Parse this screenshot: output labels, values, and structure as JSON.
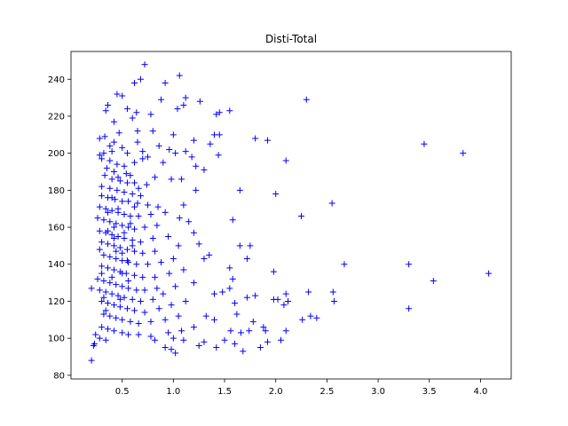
{
  "chart_data": {
    "type": "scatter",
    "title": "Disti-Total",
    "xlabel": "",
    "ylabel": "",
    "xlim": [
      0.0,
      4.3
    ],
    "ylim": [
      78,
      255
    ],
    "xticks": [
      0.5,
      1.0,
      1.5,
      2.0,
      2.5,
      3.0,
      3.5,
      4.0
    ],
    "yticks": [
      80,
      100,
      120,
      140,
      160,
      180,
      200,
      220,
      240
    ],
    "grid": false,
    "marker": "+",
    "color": "#0000ff",
    "series": [
      {
        "points": [
          [
            0.72,
            248
          ],
          [
            1.06,
            242
          ],
          [
            0.68,
            240
          ],
          [
            0.92,
            238
          ],
          [
            0.62,
            238
          ],
          [
            0.45,
            232
          ],
          [
            0.5,
            231
          ],
          [
            0.36,
            226
          ],
          [
            0.34,
            223
          ],
          [
            0.55,
            224
          ],
          [
            0.88,
            229
          ],
          [
            1.12,
            230
          ],
          [
            1.26,
            228
          ],
          [
            1.1,
            226
          ],
          [
            1.04,
            224
          ],
          [
            0.64,
            222
          ],
          [
            0.78,
            221
          ],
          [
            1.45,
            222
          ],
          [
            1.55,
            223
          ],
          [
            2.3,
            229
          ],
          [
            1.42,
            221
          ],
          [
            0.6,
            219
          ],
          [
            0.42,
            217
          ],
          [
            0.8,
            212
          ],
          [
            0.65,
            212
          ],
          [
            0.47,
            211
          ],
          [
            0.33,
            209
          ],
          [
            0.28,
            208
          ],
          [
            1.0,
            210
          ],
          [
            1.4,
            210
          ],
          [
            1.45,
            210
          ],
          [
            1.2,
            207
          ],
          [
            1.36,
            205
          ],
          [
            1.8,
            208
          ],
          [
            1.92,
            207
          ],
          [
            3.45,
            205
          ],
          [
            0.42,
            206
          ],
          [
            0.38,
            204
          ],
          [
            0.5,
            203
          ],
          [
            0.65,
            206
          ],
          [
            0.86,
            204
          ],
          [
            0.96,
            202
          ],
          [
            0.4,
            201
          ],
          [
            0.32,
            200
          ],
          [
            0.28,
            199
          ],
          [
            0.55,
            200
          ],
          [
            0.7,
            201
          ],
          [
            0.75,
            198
          ],
          [
            1.12,
            201
          ],
          [
            1.02,
            200
          ],
          [
            1.44,
            199
          ],
          [
            3.83,
            200
          ],
          [
            2.1,
            196
          ],
          [
            1.18,
            198
          ],
          [
            0.3,
            197
          ],
          [
            0.38,
            196
          ],
          [
            0.45,
            194
          ],
          [
            0.52,
            193
          ],
          [
            0.62,
            195
          ],
          [
            0.9,
            195
          ],
          [
            1.22,
            193
          ],
          [
            0.35,
            192
          ],
          [
            0.42,
            190
          ],
          [
            0.58,
            188
          ],
          [
            0.82,
            187
          ],
          [
            0.98,
            186
          ],
          [
            1.08,
            186
          ],
          [
            1.3,
            191
          ],
          [
            0.33,
            188
          ],
          [
            0.4,
            186
          ],
          [
            0.48,
            185
          ],
          [
            0.55,
            184
          ],
          [
            0.62,
            184
          ],
          [
            0.74,
            183
          ],
          [
            0.3,
            182
          ],
          [
            0.38,
            181
          ],
          [
            0.45,
            180
          ],
          [
            0.52,
            179
          ],
          [
            0.6,
            178
          ],
          [
            0.68,
            177
          ],
          [
            1.22,
            180
          ],
          [
            1.65,
            180
          ],
          [
            2.0,
            178
          ],
          [
            0.3,
            177
          ],
          [
            0.36,
            176
          ],
          [
            0.43,
            175
          ],
          [
            0.5,
            174
          ],
          [
            0.56,
            174
          ],
          [
            0.65,
            173
          ],
          [
            0.75,
            172
          ],
          [
            0.85,
            171
          ],
          [
            1.1,
            172
          ],
          [
            2.55,
            173
          ],
          [
            0.28,
            171
          ],
          [
            0.34,
            170
          ],
          [
            0.4,
            169
          ],
          [
            0.46,
            168
          ],
          [
            0.52,
            167
          ],
          [
            0.58,
            166
          ],
          [
            0.66,
            166
          ],
          [
            0.78,
            167
          ],
          [
            0.92,
            168
          ],
          [
            1.06,
            165
          ],
          [
            0.26,
            165
          ],
          [
            0.32,
            164
          ],
          [
            0.38,
            163
          ],
          [
            0.44,
            162
          ],
          [
            0.5,
            161
          ],
          [
            0.56,
            160
          ],
          [
            0.62,
            159
          ],
          [
            0.72,
            160
          ],
          [
            0.84,
            161
          ],
          [
            1.15,
            163
          ],
          [
            1.58,
            164
          ],
          [
            2.25,
            166
          ],
          [
            0.28,
            158
          ],
          [
            0.34,
            157
          ],
          [
            0.4,
            156
          ],
          [
            0.46,
            155
          ],
          [
            0.52,
            154
          ],
          [
            0.6,
            153
          ],
          [
            0.68,
            152
          ],
          [
            0.8,
            154
          ],
          [
            0.95,
            155
          ],
          [
            1.2,
            157
          ],
          [
            0.3,
            152
          ],
          [
            0.36,
            151
          ],
          [
            0.42,
            150
          ],
          [
            0.48,
            149
          ],
          [
            0.55,
            148
          ],
          [
            0.62,
            147
          ],
          [
            0.7,
            146
          ],
          [
            0.82,
            147
          ],
          [
            1.05,
            150
          ],
          [
            1.25,
            151
          ],
          [
            1.65,
            150
          ],
          [
            1.75,
            150
          ],
          [
            0.32,
            145
          ],
          [
            0.38,
            144
          ],
          [
            0.44,
            143
          ],
          [
            0.5,
            142
          ],
          [
            0.56,
            141
          ],
          [
            0.64,
            140
          ],
          [
            0.75,
            140
          ],
          [
            0.88,
            141
          ],
          [
            1.0,
            143
          ],
          [
            1.3,
            143
          ],
          [
            1.35,
            145
          ],
          [
            1.72,
            143
          ],
          [
            2.67,
            140
          ],
          [
            3.3,
            140
          ],
          [
            0.3,
            139
          ],
          [
            0.36,
            138
          ],
          [
            0.42,
            137
          ],
          [
            0.48,
            136
          ],
          [
            0.54,
            135
          ],
          [
            0.62,
            134
          ],
          [
            0.7,
            133
          ],
          [
            0.82,
            133
          ],
          [
            0.96,
            135
          ],
          [
            1.1,
            137
          ],
          [
            1.55,
            138
          ],
          [
            1.98,
            136
          ],
          [
            0.26,
            132
          ],
          [
            0.32,
            131
          ],
          [
            0.38,
            130
          ],
          [
            0.44,
            129
          ],
          [
            0.5,
            128
          ],
          [
            0.56,
            127
          ],
          [
            0.64,
            126
          ],
          [
            0.72,
            126
          ],
          [
            0.84,
            127
          ],
          [
            1.02,
            128
          ],
          [
            1.2,
            130
          ],
          [
            1.58,
            132
          ],
          [
            3.54,
            131
          ],
          [
            4.08,
            135
          ],
          [
            0.2,
            127
          ],
          [
            0.28,
            126
          ],
          [
            0.34,
            125
          ],
          [
            0.4,
            124
          ],
          [
            0.46,
            123
          ],
          [
            0.52,
            122
          ],
          [
            0.6,
            121
          ],
          [
            0.68,
            120
          ],
          [
            0.8,
            121
          ],
          [
            0.9,
            124
          ],
          [
            1.4,
            124
          ],
          [
            1.48,
            125
          ],
          [
            1.55,
            127
          ],
          [
            2.1,
            124
          ],
          [
            2.32,
            125
          ],
          [
            2.56,
            125
          ],
          [
            0.3,
            120
          ],
          [
            0.36,
            119
          ],
          [
            0.42,
            118
          ],
          [
            0.48,
            117
          ],
          [
            0.55,
            116
          ],
          [
            0.62,
            115
          ],
          [
            0.72,
            114
          ],
          [
            0.86,
            116
          ],
          [
            0.98,
            118
          ],
          [
            1.12,
            120
          ],
          [
            1.6,
            119
          ],
          [
            1.72,
            122
          ],
          [
            1.8,
            123
          ],
          [
            1.98,
            121
          ],
          [
            2.02,
            121
          ],
          [
            2.08,
            118
          ],
          [
            2.57,
            120
          ],
          [
            0.32,
            113
          ],
          [
            0.38,
            112
          ],
          [
            0.44,
            111
          ],
          [
            0.5,
            110
          ],
          [
            0.58,
            109
          ],
          [
            0.66,
            108
          ],
          [
            0.78,
            109
          ],
          [
            0.92,
            110
          ],
          [
            1.05,
            112
          ],
          [
            1.32,
            112
          ],
          [
            1.4,
            110
          ],
          [
            1.62,
            113
          ],
          [
            1.78,
            109
          ],
          [
            2.12,
            120
          ],
          [
            2.34,
            112
          ],
          [
            2.4,
            111
          ],
          [
            2.26,
            110
          ],
          [
            3.3,
            116
          ],
          [
            0.3,
            106
          ],
          [
            0.36,
            105
          ],
          [
            0.42,
            104
          ],
          [
            0.5,
            103
          ],
          [
            0.56,
            102
          ],
          [
            0.66,
            102
          ],
          [
            0.78,
            101
          ],
          [
            0.95,
            103
          ],
          [
            1.08,
            104
          ],
          [
            1.2,
            106
          ],
          [
            1.56,
            104
          ],
          [
            1.66,
            103
          ],
          [
            1.74,
            104
          ],
          [
            1.88,
            106
          ],
          [
            1.9,
            104
          ],
          [
            2.1,
            104
          ],
          [
            0.24,
            102
          ],
          [
            0.28,
            100
          ],
          [
            0.34,
            99
          ],
          [
            0.82,
            99
          ],
          [
            1.0,
            100
          ],
          [
            1.1,
            99
          ],
          [
            1.3,
            98
          ],
          [
            1.5,
            99
          ],
          [
            1.6,
            97
          ],
          [
            1.92,
            98
          ],
          [
            2.05,
            99
          ],
          [
            0.23,
            97
          ],
          [
            0.22,
            96
          ],
          [
            0.92,
            95
          ],
          [
            1.25,
            96
          ],
          [
            1.85,
            95
          ],
          [
            1.42,
            95
          ],
          [
            1.68,
            93
          ],
          [
            0.98,
            94
          ],
          [
            1.02,
            92
          ],
          [
            0.2,
            88
          ],
          [
            0.42,
            160
          ],
          [
            0.46,
            170
          ],
          [
            0.36,
            158
          ],
          [
            0.44,
            147
          ],
          [
            0.4,
            133
          ],
          [
            0.48,
            121
          ],
          [
            0.34,
            115
          ],
          [
            0.52,
            157
          ],
          [
            0.58,
            162
          ],
          [
            0.62,
            171
          ],
          [
            0.66,
            181
          ],
          [
            0.54,
            189
          ],
          [
            0.7,
            197
          ],
          [
            0.28,
            148
          ],
          [
            0.3,
            135
          ],
          [
            0.32,
            122
          ],
          [
            0.5,
            135
          ],
          [
            0.55,
            142
          ],
          [
            0.6,
            150
          ],
          [
            0.46,
            187
          ],
          [
            0.4,
            176
          ],
          [
            0.36,
            168
          ],
          [
            0.42,
            154
          ],
          [
            0.5,
            146
          ],
          [
            0.56,
            131
          ]
        ]
      }
    ]
  }
}
